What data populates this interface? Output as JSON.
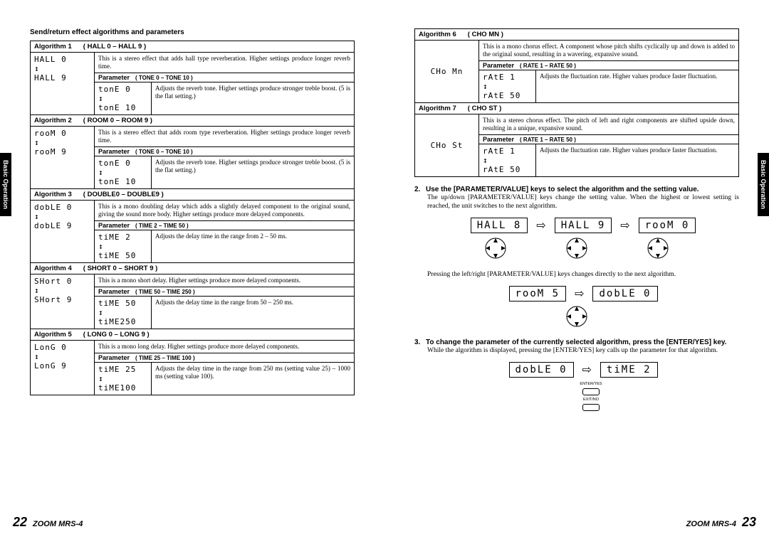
{
  "leftPage": {
    "tab": "Basic Operation",
    "pageNum": "22",
    "model": "ZOOM MRS-4",
    "sectionTitle": "Send/return effect algorithms and parameters",
    "algorithms": [
      {
        "name": "Algorithm 1",
        "range": "( HALL  0 – HALL  9 )",
        "seg": [
          "HALL  0",
          "↕",
          "HALL  9"
        ],
        "desc": "This is a stereo effect that adds hall type reverberation. Higher settings produce longer reverb time.",
        "paramName": "Parameter",
        "paramRange": "( TONE 0 – TONE 10 )",
        "paramSeg": [
          "tonE  0",
          "↕",
          "tonE 10"
        ],
        "paramDesc": "Adjusts the reverb tone. Higher settings produce stronger treble boost. (5 is the flat setting.)"
      },
      {
        "name": "Algorithm 2",
        "range": "( ROOM 0 – ROOM 9 )",
        "seg": [
          "rooM  0",
          "↕",
          "rooM  9"
        ],
        "desc": "This is a stereo effect that adds room type reverberation. Higher settings produce longer reverb time.",
        "paramName": "Parameter",
        "paramRange": "( TONE 0 – TONE 10 )",
        "paramSeg": [
          "tonE  0",
          "↕",
          "tonE 10"
        ],
        "paramDesc": "Adjusts the reverb tone. Higher settings produce stronger treble boost. (5 is the flat setting.)"
      },
      {
        "name": "Algorithm 3",
        "range": "( DOUBLE0 – DOUBLE9 )",
        "seg": [
          "dobLE 0",
          "↕",
          "dobLE 9"
        ],
        "desc": "This is a mono doubling delay which adds a slightly delayed component to the original sound, giving the sound more body. Higher settings produce more delayed components.",
        "paramName": "Parameter",
        "paramRange": "( TIME 2 – TIME 50 )",
        "paramSeg": [
          "tiME  2",
          "↕",
          "tiME 50"
        ],
        "paramDesc": "Adjusts the delay time in the range from 2 – 50 ms."
      },
      {
        "name": "Algorithm 4",
        "range": "( SHORT 0 – SHORT 9 )",
        "seg": [
          "SHort 0",
          "↕",
          "SHort 9"
        ],
        "desc": "This is a mono short delay. Higher settings produce more delayed components.",
        "paramName": "Parameter",
        "paramRange": "( TIME 50 – TIME 250 )",
        "paramSeg": [
          "tiME 50",
          "↕",
          "tiME250"
        ],
        "paramDesc": "Adjusts the delay time in the range from 50 – 250 ms."
      },
      {
        "name": "Algorithm 5",
        "range": "( LONG  0 – LONG 9 )",
        "seg": [
          "LonG  0",
          "↕",
          "LonG  9"
        ],
        "desc": "This is a mono long delay. Higher settings produce more delayed components.",
        "paramName": "Parameter",
        "paramRange": "( TIME 25 – TIME 100 )",
        "paramSeg": [
          "tiME 25",
          "↕",
          "tiME100"
        ],
        "paramDesc": "Adjusts the delay time in the range from 250 ms (setting value 25) – 1000 ms (setting value 100)."
      }
    ]
  },
  "rightPage": {
    "tab": "Basic Operation",
    "pageNum": "23",
    "model": "ZOOM MRS-4",
    "algorithms": [
      {
        "name": "Algorithm 6",
        "range": "( CHO MN )",
        "seg": [
          "CHo Mn"
        ],
        "desc": "This is a mono chorus effect. A component whose pitch shifts cyclically up and down is added to the original sound, resulting in a wavering, expansive sound.",
        "paramName": "Parameter",
        "paramRange": "( RATE 1 – RATE 50 )",
        "paramSeg": [
          "rAtE  1",
          "↕",
          "rAtE 50"
        ],
        "paramDesc": "Adjusts the fluctuation rate. Higher values produce faster fluctuation."
      },
      {
        "name": "Algorithm 7",
        "range": "( CHO ST )",
        "seg": [
          "CHo St"
        ],
        "desc": "This is a stereo chorus effect. The pitch of left and right components are shifted upside down, resulting in a unique, expansive sound.",
        "paramName": "Parameter",
        "paramRange": "( RATE 1 – RATE  50 )",
        "paramSeg": [
          "rAtE  1",
          "↕",
          "rAtE 50"
        ],
        "paramDesc": "Adjusts the fluctuation rate. Higher values produce faster fluctuation."
      }
    ],
    "step2": {
      "num": "2.",
      "title": "Use the [PARAMETER/VALUE] keys to select the algorithm and the setting value.",
      "body1": "The up/down [PARAMETER/VALUE] keys change the setting value. When the highest or lowest setting is reached, the unit switches to the next algorithm.",
      "boxes1": [
        "HALL  8",
        "HALL  9",
        "rooM  0"
      ],
      "body2": "Pressing the left/right [PARAMETER/VALUE] keys changes directly to the next algorithm.",
      "boxes2": [
        "rooM  5",
        "dobLE 0"
      ]
    },
    "step3": {
      "num": "3.",
      "title": "To change the parameter of the currently selected algorithm, press the [ENTER/YES] key.",
      "body": "While the algorithm is displayed, pressing the [ENTER/YES] key calls up the parameter for that algorithm.",
      "boxes": [
        "dobLE 0",
        "tiME  2"
      ],
      "btnTop": "ENTER/YES",
      "btnBot": "EXIT/NO"
    }
  }
}
